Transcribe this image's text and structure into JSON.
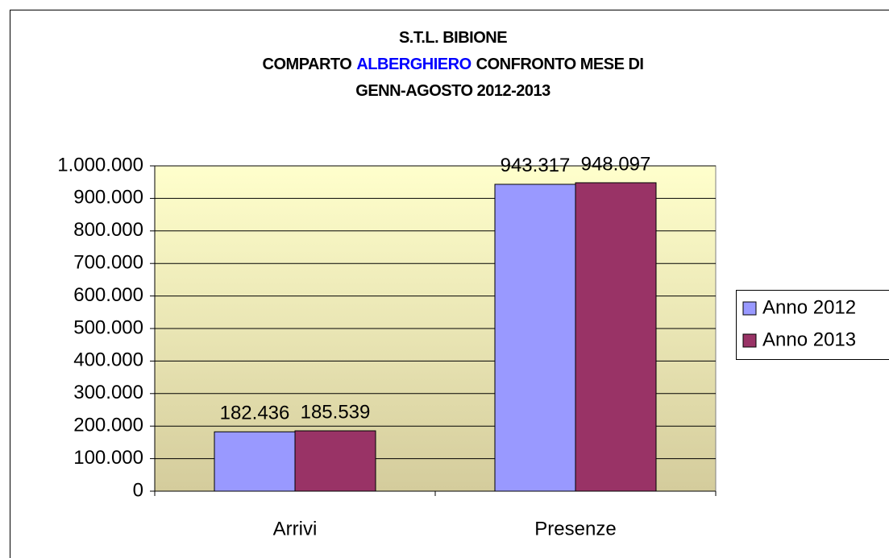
{
  "chart_data": {
    "type": "bar",
    "title": [
      [
        {
          "text": "S.T.L. BIBIONE",
          "color": "#000000"
        }
      ],
      [
        {
          "text": "COMPARTO",
          "color": "#000000"
        },
        {
          "text": "ALBERGHIERO",
          "color": "#0000ff"
        },
        {
          "text": "CONFRONTO MESE DI",
          "color": "#000000"
        }
      ],
      [
        {
          "text": "GENN-AGOSTO 2012-2013",
          "color": "#000000"
        }
      ]
    ],
    "categories": [
      "Arrivi",
      "Presenze"
    ],
    "series": [
      {
        "name": "Anno 2012",
        "color": "#9999ff",
        "values": [
          182436,
          943317
        ],
        "value_labels": [
          "182.436",
          "943.317"
        ]
      },
      {
        "name": "Anno 2013",
        "color": "#993366",
        "values": [
          185539,
          948097
        ],
        "value_labels": [
          "185.539",
          "948.097"
        ]
      }
    ],
    "ylim": [
      0,
      1000000
    ],
    "yticks": [
      0,
      {
        "value": 100000,
        "label": "100.000"
      },
      {
        "value": 200000,
        "label": "200.000"
      },
      {
        "value": 300000,
        "label": "300.000"
      },
      {
        "value": 400000,
        "label": "400.000"
      },
      {
        "value": 500000,
        "label": "500.000"
      },
      {
        "value": 600000,
        "label": "600.000"
      },
      {
        "value": 700000,
        "label": "700.000"
      },
      {
        "value": 800000,
        "label": "800.000"
      },
      {
        "value": 900000,
        "label": "900.000"
      },
      {
        "value": 1000000,
        "label": "1.000.000"
      }
    ],
    "grid": true,
    "legend": "right"
  }
}
